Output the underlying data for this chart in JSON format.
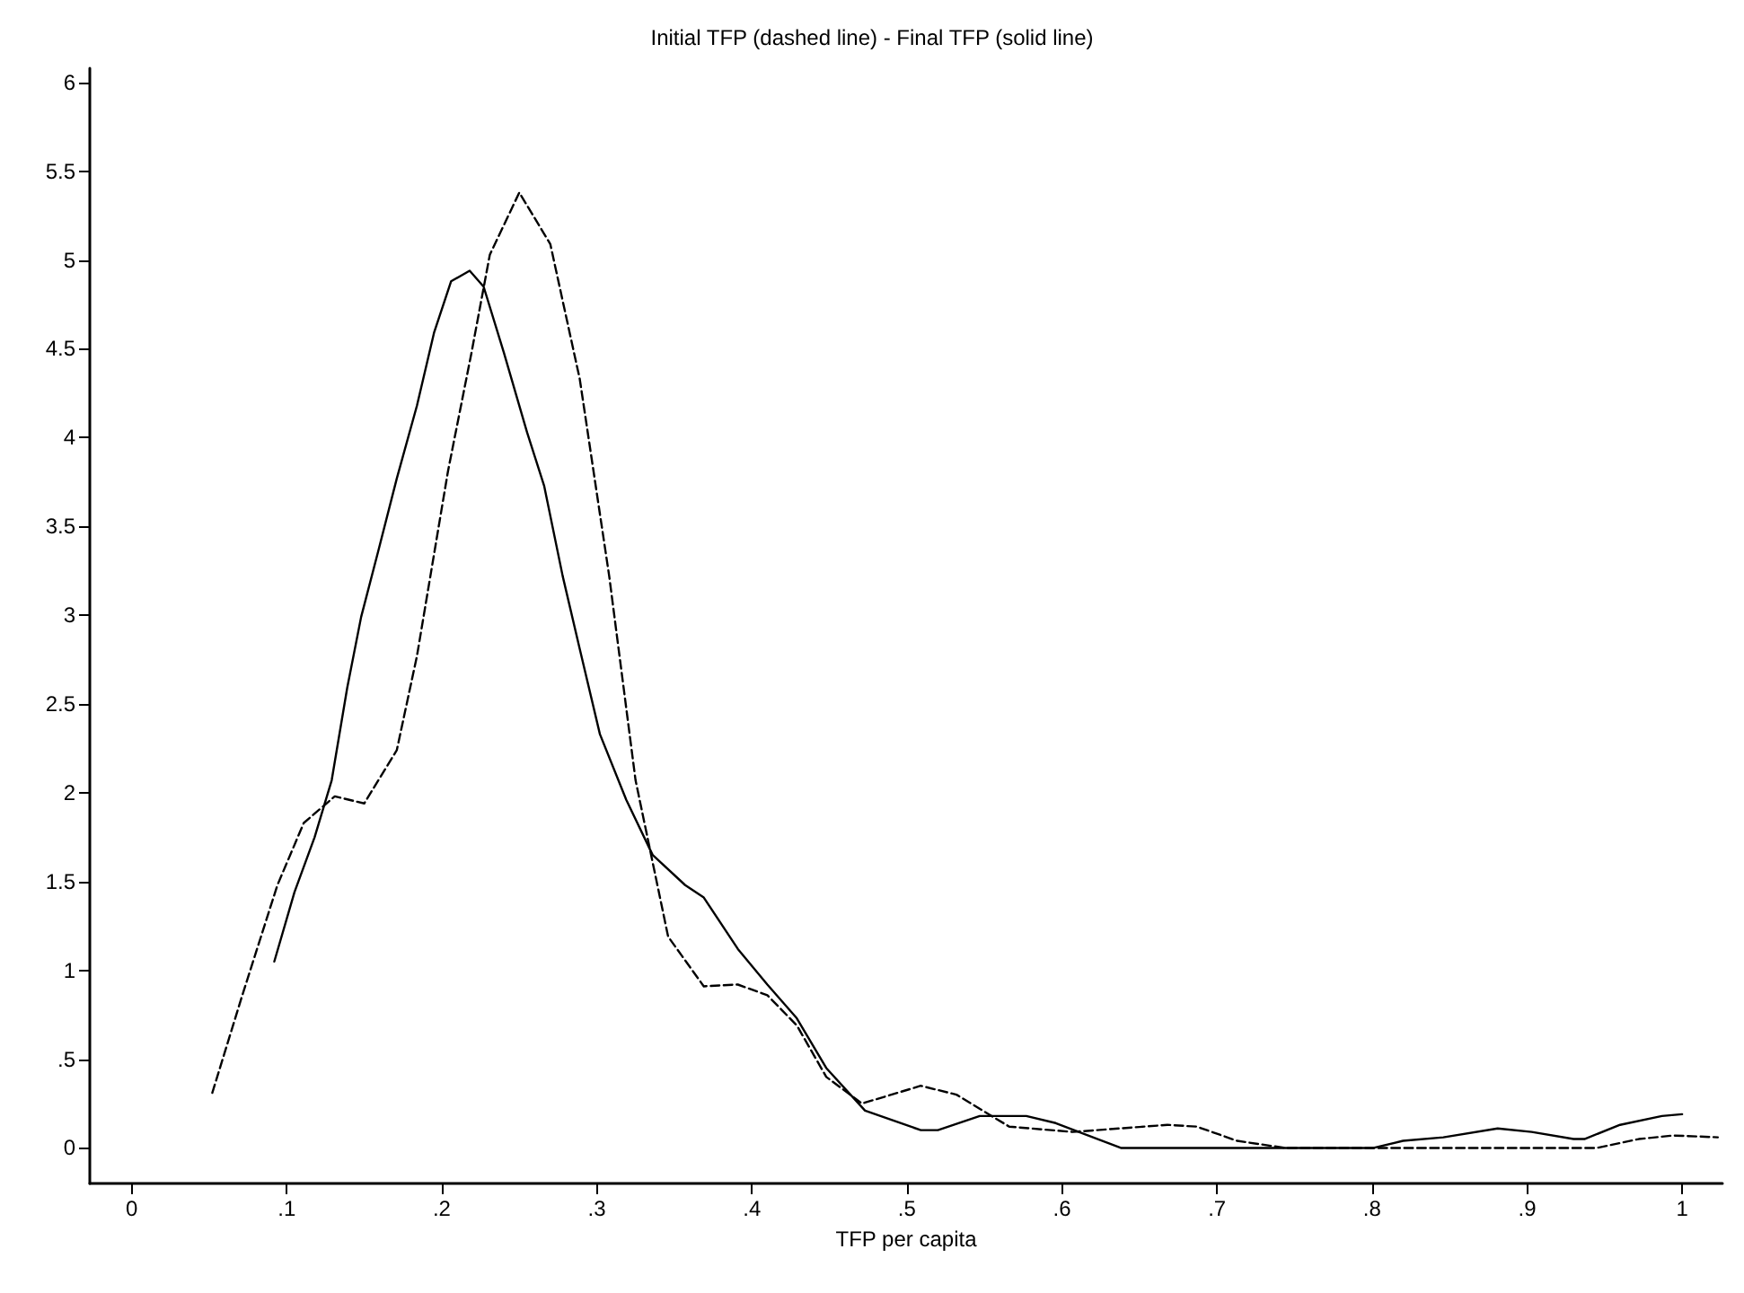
{
  "chart_data": {
    "type": "line",
    "title": "Initial TFP (dashed line) - Final TFP (solid line)",
    "xlabel": "TFP per capita",
    "xlim": [
      -0.027,
      1.026
    ],
    "ylim": [
      -0.2,
      6.08
    ],
    "xticks": [
      0,
      {
        "value": 0.1,
        "label": ".1"
      },
      {
        "value": 0.2,
        "label": ".2"
      },
      {
        "value": 0.3,
        "label": ".3"
      },
      {
        "value": 0.4,
        "label": ".4"
      },
      {
        "value": 0.5,
        "label": ".5"
      },
      {
        "value": 0.6,
        "label": ".6"
      },
      {
        "value": 0.7,
        "label": ".7"
      },
      {
        "value": 0.8,
        "label": ".8"
      },
      {
        "value": 0.9,
        "label": ".9"
      },
      1
    ],
    "yticks": [
      0,
      {
        "value": 0.5,
        "label": ".5"
      },
      1,
      1.5,
      2,
      2.5,
      3,
      3.5,
      4,
      4.5,
      5,
      5.5,
      6
    ],
    "grid": false,
    "marker": "none",
    "series": [
      {
        "color": "#000000",
        "line_style": "dashed",
        "x": [
          0.052,
          0.071,
          0.094,
          0.111,
          0.131,
          0.15,
          0.171,
          0.184,
          0.204,
          0.219,
          0.231,
          0.25,
          0.27,
          0.289,
          0.308,
          0.325,
          0.346,
          0.369,
          0.391,
          0.41,
          0.429,
          0.448,
          0.471,
          0.509,
          0.532,
          0.566,
          0.607,
          0.668,
          0.687,
          0.713,
          0.744,
          0.945,
          0.972,
          0.994,
          1.023
        ],
        "values": [
          0.31,
          0.85,
          1.48,
          1.83,
          1.98,
          1.94,
          2.24,
          2.77,
          3.81,
          4.47,
          5.03,
          5.38,
          5.09,
          4.33,
          3.22,
          2.07,
          1.19,
          0.91,
          0.92,
          0.86,
          0.69,
          0.4,
          0.25,
          0.35,
          0.3,
          0.12,
          0.09,
          0.13,
          0.12,
          0.04,
          0,
          0,
          0.05,
          0.07,
          0.06
        ]
      },
      {
        "color": "#000000",
        "line_style": "solid",
        "x": [
          0.092,
          0.105,
          0.118,
          0.129,
          0.139,
          0.148,
          0.159,
          0.171,
          0.184,
          0.195,
          0.206,
          0.218,
          0.227,
          0.24,
          0.255,
          0.266,
          0.278,
          0.289,
          0.302,
          0.319,
          0.336,
          0.357,
          0.369,
          0.391,
          0.41,
          0.429,
          0.448,
          0.473,
          0.509,
          0.52,
          0.547,
          0.577,
          0.596,
          0.638,
          0.801,
          0.82,
          0.846,
          0.881,
          0.903,
          0.93,
          0.937,
          0.96,
          0.987,
          1.0
        ],
        "values": [
          1.05,
          1.44,
          1.75,
          2.07,
          2.59,
          2.99,
          3.36,
          3.77,
          4.18,
          4.59,
          4.88,
          4.94,
          4.85,
          4.48,
          4.03,
          3.73,
          3.22,
          2.81,
          2.33,
          1.96,
          1.65,
          1.48,
          1.41,
          1.12,
          0.92,
          0.73,
          0.45,
          0.21,
          0.1,
          0.1,
          0.18,
          0.18,
          0.14,
          0,
          0,
          0.04,
          0.06,
          0.11,
          0.09,
          0.05,
          0.05,
          0.13,
          0.18,
          0.19
        ]
      }
    ]
  }
}
